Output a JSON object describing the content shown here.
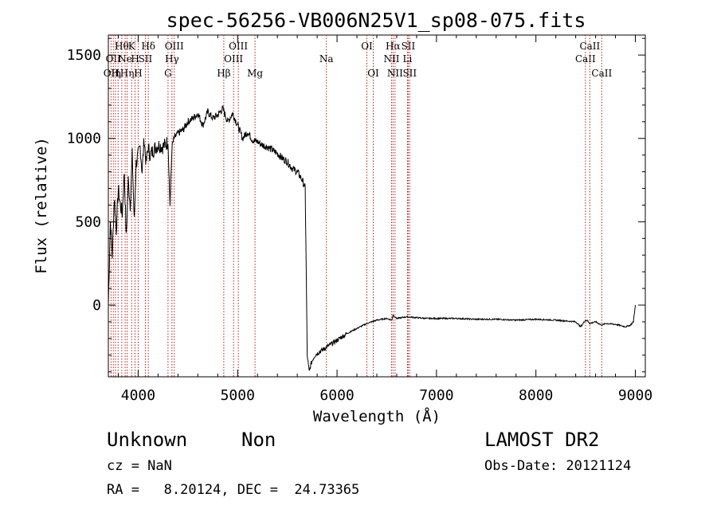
{
  "chart_data": {
    "type": "line",
    "title": "spec-56256-VB006N25V1_sp08-075.fits",
    "xlabel": "Wavelength (Å)",
    "ylabel": "Flux (relative)",
    "xlim": [
      3700,
      9100
    ],
    "ylim": [
      -430,
      1620
    ],
    "x_ticks": [
      4000,
      5000,
      6000,
      7000,
      8000,
      9000
    ],
    "y_ticks": [
      0,
      500,
      1000,
      1500
    ],
    "x_tick_labels": [
      "4000",
      "5000",
      "6000",
      "7000",
      "8000",
      "9000"
    ],
    "y_tick_labels": [
      "0",
      "500",
      "1000",
      "1500"
    ],
    "grid": false,
    "series": [
      {
        "x": [
          3700,
          3720,
          3740,
          3760,
          3780,
          3800,
          3820,
          3840,
          3860,
          3880,
          3900,
          3920,
          3940,
          3960,
          3980,
          4000,
          4020,
          4040,
          4060,
          4080,
          4100,
          4120,
          4150,
          4200,
          4250,
          4300,
          4320,
          4340,
          4360,
          4400,
          4450,
          4500,
          4550,
          4600,
          4650,
          4700,
          4750,
          4800,
          4850,
          4900,
          4950,
          5000,
          5050,
          5100,
          5150,
          5200,
          5250,
          5300,
          5350,
          5400,
          5450,
          5500,
          5550,
          5600,
          5650,
          5680,
          5690,
          5700,
          5720,
          5740,
          5760,
          5780,
          5800,
          5850,
          5900,
          5950,
          6000,
          6100,
          6200,
          6300,
          6400,
          6500,
          6550,
          6563,
          6600,
          6700,
          6800,
          6900,
          7000,
          7200,
          7400,
          7600,
          7800,
          8000,
          8200,
          8400,
          8450,
          8498,
          8520,
          8542,
          8600,
          8662,
          8700,
          8800,
          8900,
          8950,
          8980,
          9000
        ],
        "y": [
          0,
          500,
          300,
          650,
          450,
          700,
          600,
          550,
          800,
          400,
          750,
          600,
          900,
          500,
          850,
          900,
          950,
          800,
          1000,
          850,
          950,
          900,
          930,
          960,
          950,
          980,
          600,
          950,
          1000,
          1030,
          1050,
          1100,
          1120,
          1150,
          1080,
          1160,
          1120,
          1140,
          1180,
          1100,
          1150,
          1080,
          1000,
          1040,
          990,
          980,
          960,
          950,
          930,
          910,
          880,
          860,
          820,
          800,
          750,
          700,
          200,
          -300,
          -400,
          -350,
          -320,
          -300,
          -290,
          -270,
          -250,
          -230,
          -210,
          -170,
          -140,
          -110,
          -90,
          -80,
          -90,
          -60,
          -80,
          -70,
          -75,
          -80,
          -80,
          -80,
          -85,
          -85,
          -90,
          -85,
          -90,
          -100,
          -130,
          -90,
          -95,
          -110,
          -100,
          -120,
          -110,
          -115,
          -130,
          -120,
          -100,
          0
        ]
      }
    ],
    "line_markers": [
      {
        "x": 3727,
        "row": 2,
        "label": "OII"
      },
      {
        "x": 3750,
        "row": 1,
        "label": "OII"
      },
      {
        "x": 3771,
        "row": 2,
        "label": "H"
      },
      {
        "x": 3798,
        "row": 2,
        "label": "η"
      },
      {
        "x": 3835,
        "row": 0,
        "label": "Hθ"
      },
      {
        "x": 3869,
        "row": 1,
        "label": "Ne"
      },
      {
        "x": 3889,
        "row": 2,
        "label": "Hη"
      },
      {
        "x": 3934,
        "row": 0,
        "label": "K"
      },
      {
        "x": 3969,
        "row": 1,
        "label": "H"
      },
      {
        "x": 4000,
        "row": 2,
        "label": "H"
      },
      {
        "x": 4072,
        "row": 1,
        "label": "SII"
      },
      {
        "x": 4102,
        "row": 0,
        "label": "Hδ"
      },
      {
        "x": 4300,
        "row": 2,
        "label": "G"
      },
      {
        "x": 4340,
        "row": 1,
        "label": "Hγ"
      },
      {
        "x": 4363,
        "row": 0,
        "label": "OIII"
      },
      {
        "x": 4861,
        "row": 2,
        "label": "Hβ"
      },
      {
        "x": 4959,
        "row": 1,
        "label": "OIII"
      },
      {
        "x": 5007,
        "row": 0,
        "label": "OIII"
      },
      {
        "x": 5175,
        "row": 2,
        "label": "Mg"
      },
      {
        "x": 5893,
        "row": 1,
        "label": "Na"
      },
      {
        "x": 6300,
        "row": 0,
        "label": "OI"
      },
      {
        "x": 6364,
        "row": 2,
        "label": "OI"
      },
      {
        "x": 6548,
        "row": 1,
        "label": "NII"
      },
      {
        "x": 6563,
        "row": 0,
        "label": "Hα"
      },
      {
        "x": 6583,
        "row": 2,
        "label": "NII"
      },
      {
        "x": 6708,
        "row": 1,
        "label": "Li"
      },
      {
        "x": 6716,
        "row": 0,
        "label": "SII"
      },
      {
        "x": 6731,
        "row": 2,
        "label": "SII"
      },
      {
        "x": 8498,
        "row": 1,
        "label": "CaII"
      },
      {
        "x": 8542,
        "row": 0,
        "label": "CaII"
      },
      {
        "x": 8662,
        "row": 2,
        "label": "CaII"
      }
    ]
  },
  "footer": {
    "class_label": "Unknown",
    "subclass_label": "Non",
    "survey_label": "LAMOST DR2",
    "cz_label": "cz = NaN",
    "obs_date": "Obs-Date: 20121124",
    "coords": "RA =   8.20124, DEC =  24.73365"
  }
}
